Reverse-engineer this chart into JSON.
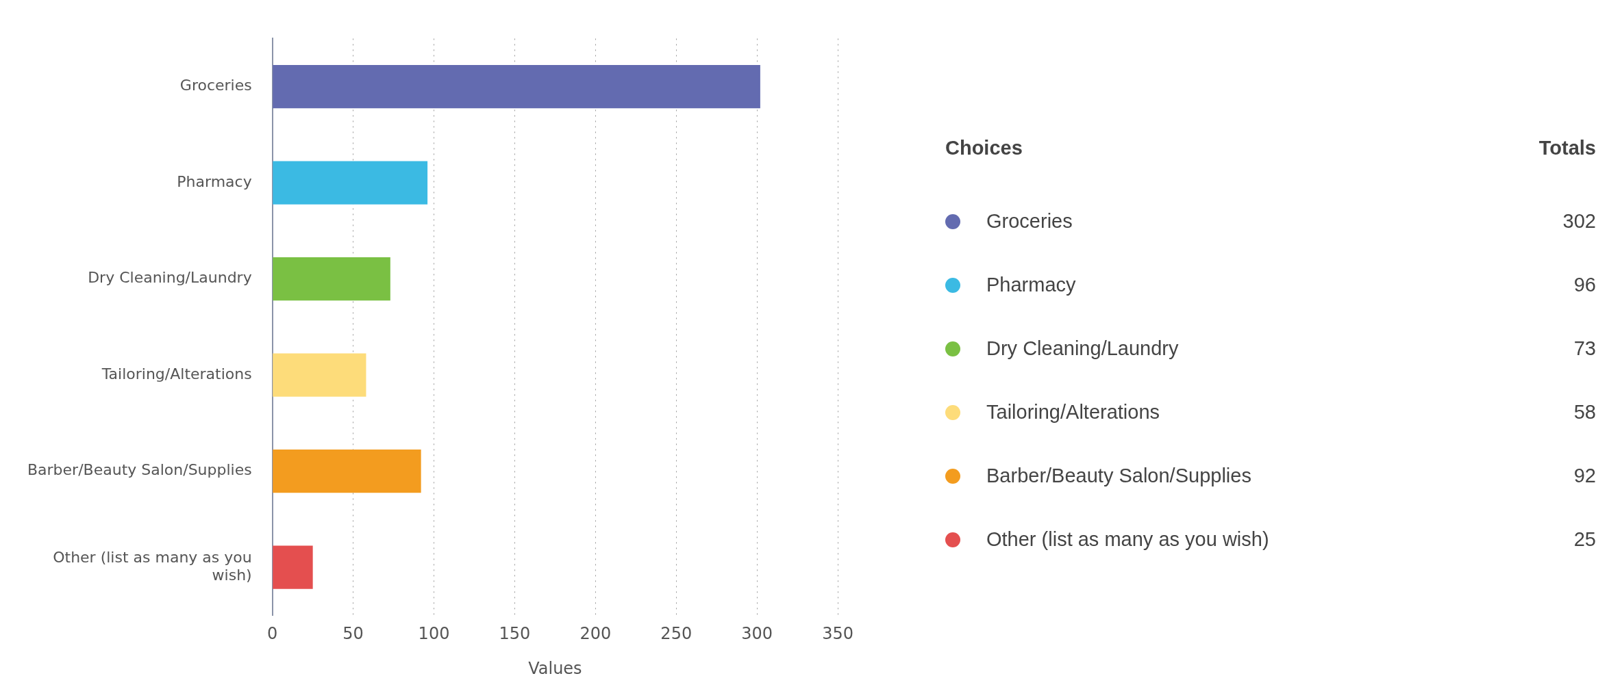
{
  "chart_data": [
    {
      "type": "bar",
      "orientation": "horizontal",
      "xlabel": "Values",
      "categories": [
        "Groceries",
        "Pharmacy",
        "Dry Cleaning/Laundry",
        "Tailoring/Alterations",
        "Barber/Beauty Salon/Supplies",
        "Other (list as many as you wish)"
      ],
      "values": [
        302,
        96,
        73,
        58,
        92,
        25
      ],
      "colors": [
        "#636bb0",
        "#3bbae3",
        "#7ac043",
        "#fddc7a",
        "#f39c1f",
        "#e44f4f"
      ],
      "xlim": [
        0,
        350
      ],
      "xticks": [
        0,
        50,
        100,
        150,
        200,
        250,
        300,
        350
      ],
      "grid": "x"
    },
    {
      "type": "other",
      "annotations": [
        "Choices",
        "Totals"
      ],
      "categories": [
        "Groceries",
        "Pharmacy",
        "Dry Cleaning/Laundry",
        "Tailoring/Alterations",
        "Barber/Beauty Salon/Supplies",
        "Other (list as many as you wish)"
      ],
      "values": [
        302,
        96,
        73,
        58,
        92,
        25
      ],
      "colors": [
        "#636bb0",
        "#3bbae3",
        "#7ac043",
        "#fddc7a",
        "#f39c1f",
        "#e44f4f"
      ],
      "data_labels": true
    }
  ]
}
